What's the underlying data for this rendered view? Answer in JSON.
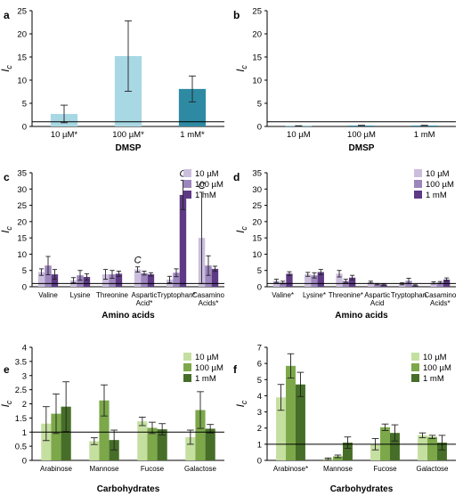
{
  "chart_data": [
    {
      "panel": "a",
      "type": "bar",
      "categories": [
        "10 µM*",
        "100 µM*",
        "1 mM*"
      ],
      "xlabel": "DMSP",
      "ylabel": "I",
      "ylim": [
        0,
        25
      ],
      "yticks": [
        0,
        5,
        10,
        15,
        20,
        25
      ],
      "reference_line": 1,
      "values": [
        2.7,
        15.2,
        8.1
      ],
      "errors": [
        1.9,
        7.6,
        2.8
      ],
      "colors": [
        "#a8d8e3",
        "#a8d8e3",
        "#2e8aa3"
      ]
    },
    {
      "panel": "b",
      "type": "bar",
      "categories": [
        "10 µM",
        "100 µM",
        "1 mM"
      ],
      "xlabel": "DMSP",
      "ylabel": "I",
      "ylim": [
        0,
        25
      ],
      "yticks": [
        0,
        5,
        10,
        15,
        20,
        25
      ],
      "reference_line": 1,
      "values": [
        0.1,
        0.2,
        0.2
      ],
      "errors": [
        0.05,
        0.05,
        0.05
      ],
      "colors": [
        "#2e8aa3",
        "#2e8aa3",
        "#2e8aa3"
      ]
    },
    {
      "panel": "c",
      "type": "bar",
      "categories": [
        "Valine",
        "Lysine",
        "Threonine",
        "Aspartic Acid*",
        "Tryptophan*",
        "Casamino Acids*"
      ],
      "xlabel": "Amino acids",
      "ylabel": "I",
      "ylim": [
        0,
        35
      ],
      "yticks": [
        0,
        5,
        10,
        15,
        20,
        25,
        30,
        35
      ],
      "reference_line": 1,
      "series": [
        {
          "name": "10 µM",
          "color": "#cbbedd",
          "values": [
            4.5,
            2.0,
            3.8,
            5.3,
            2.2,
            15.0
          ],
          "errors": [
            1.0,
            0.8,
            1.5,
            0.8,
            1.0,
            14.0
          ]
        },
        {
          "name": "100 µM",
          "color": "#9d86bd",
          "values": [
            6.5,
            3.5,
            3.8,
            4.2,
            4.3,
            6.5
          ],
          "errors": [
            2.8,
            1.5,
            1.2,
            0.6,
            1.2,
            3.0
          ]
        },
        {
          "name": "1 mM",
          "color": "#5e3a86",
          "values": [
            3.8,
            3.0,
            4.0,
            3.8,
            28.2,
            5.5
          ],
          "errors": [
            1.5,
            1.0,
            0.8,
            0.5,
            4.5,
            0.8
          ]
        }
      ],
      "annotations": [
        {
          "category": "Aspartic Acid*",
          "series": "10 µM",
          "text": "C"
        },
        {
          "category": "Tryptophan*",
          "series": "1 mM",
          "text": "C"
        },
        {
          "category": "Casamino Acids*",
          "series": "10 µM",
          "text": "C"
        }
      ]
    },
    {
      "panel": "d",
      "type": "bar",
      "categories": [
        "Valine*",
        "Lysine*",
        "Threonine*",
        "Aspartic Acid",
        "Tryptophan",
        "Casamino Acids*"
      ],
      "xlabel": "Amino acids",
      "ylabel": "I",
      "ylim": [
        0,
        35
      ],
      "yticks": [
        0,
        5,
        10,
        15,
        20,
        25,
        30,
        35
      ],
      "reference_line": 1,
      "series": [
        {
          "name": "10 µM",
          "color": "#cbbedd",
          "values": [
            1.8,
            3.8,
            4.0,
            1.4,
            0.9,
            1.2
          ],
          "errors": [
            0.5,
            0.6,
            1.0,
            0.3,
            0.3,
            0.3
          ]
        },
        {
          "name": "100 µM",
          "color": "#9d86bd",
          "values": [
            1.3,
            3.5,
            1.8,
            0.8,
            1.8,
            1.3
          ],
          "errors": [
            0.4,
            0.8,
            0.5,
            0.2,
            0.8,
            0.3
          ]
        },
        {
          "name": "1 mM",
          "color": "#5e3a86",
          "values": [
            4.0,
            4.5,
            2.8,
            0.7,
            0.4,
            2.2
          ],
          "errors": [
            0.6,
            0.8,
            0.7,
            0.2,
            0.2,
            0.5
          ]
        }
      ]
    },
    {
      "panel": "e",
      "type": "bar",
      "categories": [
        "Arabinose",
        "Mannose",
        "Fucose",
        "Galactose"
      ],
      "xlabel": "Carbohydrates",
      "ylabel": "I",
      "ylim": [
        0,
        4
      ],
      "yticks": [
        0,
        0.5,
        1,
        1.5,
        2,
        2.5,
        3,
        3.5,
        4
      ],
      "reference_line": 1,
      "series": [
        {
          "name": "10 µM",
          "color": "#c5dfa0",
          "values": [
            1.3,
            0.68,
            1.38,
            0.82
          ],
          "errors": [
            0.6,
            0.12,
            0.15,
            0.25
          ]
        },
        {
          "name": "100 µM",
          "color": "#7ca84a",
          "values": [
            1.65,
            2.12,
            1.15,
            1.78
          ],
          "errors": [
            0.7,
            0.55,
            0.2,
            0.65
          ]
        },
        {
          "name": "1 mM",
          "color": "#466e28",
          "values": [
            1.9,
            0.72,
            1.1,
            1.12
          ],
          "errors": [
            0.88,
            0.35,
            0.2,
            0.15
          ]
        }
      ]
    },
    {
      "panel": "f",
      "type": "bar",
      "categories": [
        "Arabinose*",
        "Mannose",
        "Fucose",
        "Galactose"
      ],
      "xlabel": "Carbohydrates",
      "ylabel": "I",
      "ylim": [
        0,
        7
      ],
      "yticks": [
        0,
        1,
        2,
        3,
        4,
        5,
        6,
        7
      ],
      "reference_line": 1,
      "series": [
        {
          "name": "10 µM",
          "color": "#c5dfa0",
          "values": [
            3.9,
            0.1,
            1.0,
            1.55
          ],
          "errors": [
            0.8,
            0.05,
            0.35,
            0.15
          ]
        },
        {
          "name": "100 µM",
          "color": "#7ca84a",
          "values": [
            5.85,
            0.25,
            2.05,
            1.45
          ],
          "errors": [
            0.75,
            0.08,
            0.2,
            0.1
          ]
        },
        {
          "name": "1 mM",
          "color": "#466e28",
          "values": [
            4.7,
            1.1,
            1.7,
            1.1
          ],
          "errors": [
            0.75,
            0.35,
            0.5,
            0.45
          ]
        }
      ]
    }
  ]
}
